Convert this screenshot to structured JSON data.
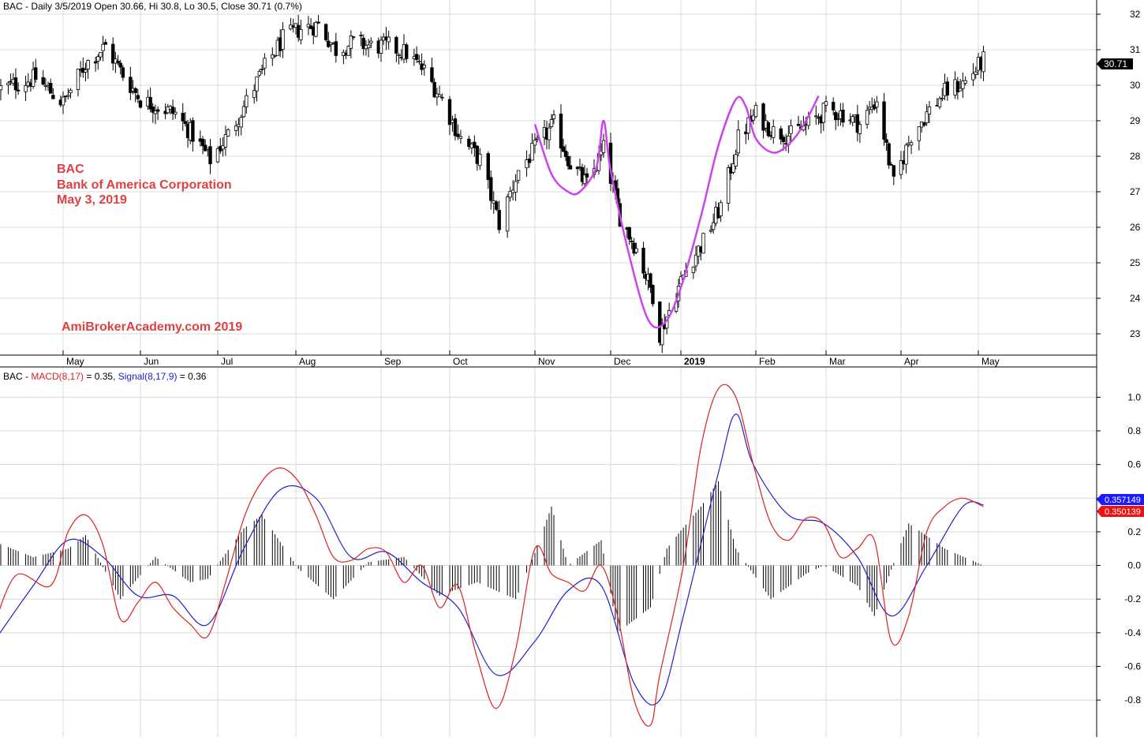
{
  "price_panel": {
    "header_text": "BAC - Daily 3/5/2019 Open 30.66, Hi 30.8, Lo 30.5, Close 30.71 (0.7%)",
    "annotation_lines": [
      "BAC",
      "Bank of America Corporation",
      "May 3, 2019"
    ],
    "watermark": "AmiBrokerAcademy.com  2019",
    "last_price_label": "30.71"
  },
  "macd_panel": {
    "header_prefix": "BAC - ",
    "macd_label": "MACD(8,17)",
    "macd_value_text": " = 0.35, ",
    "signal_label": "Signal(8,17,9)",
    "signal_value_text": " = 0.36",
    "signal_tag": "0.357149",
    "macd_tag": "0.350139"
  },
  "colors": {
    "up_candle": "#ffffff",
    "down_candle": "#000000",
    "pattern_curve": "#cc44ee",
    "annotation_text": "#e04040",
    "macd_line": "#dd2020",
    "signal_line": "#2020cc",
    "grid": "#d8d8d8",
    "last_price_tag": "#000000",
    "signal_tag": "#1a1aff",
    "macd_tag": "#ee1111"
  },
  "chart_data": [
    {
      "type": "candlestick",
      "x_axis": {
        "tick_labels": [
          "May",
          "Jun",
          "Jul",
          "Aug",
          "Sep",
          "Oct",
          "Nov",
          "Dec",
          "2019",
          "Feb",
          "Mar",
          "Apr",
          "May"
        ],
        "tick_dates": [
          "2018-05-01",
          "2018-06-01",
          "2018-07-02",
          "2018-08-01",
          "2018-09-04",
          "2018-10-01",
          "2018-11-01",
          "2018-12-03",
          "2019-01-02",
          "2019-02-01",
          "2019-03-01",
          "2019-04-01",
          "2019-05-01"
        ]
      },
      "y_axis": {
        "range": [
          22.4,
          32.4
        ],
        "ticks": [
          23,
          24,
          25,
          26,
          27,
          28,
          29,
          30,
          31,
          32
        ]
      },
      "series": [
        {
          "kind": "close_path_knots",
          "dates": [
            "2018-04-06",
            "2018-04-20",
            "2018-05-01",
            "2018-05-10",
            "2018-05-18",
            "2018-05-25",
            "2018-06-01",
            "2018-06-08",
            "2018-06-15",
            "2018-06-22",
            "2018-06-29",
            "2018-07-06",
            "2018-07-12",
            "2018-07-20",
            "2018-07-27",
            "2018-08-03",
            "2018-08-10",
            "2018-08-17",
            "2018-08-24",
            "2018-08-31",
            "2018-09-07",
            "2018-09-14",
            "2018-09-21",
            "2018-09-28",
            "2018-10-05",
            "2018-10-12",
            "2018-10-19",
            "2018-10-26",
            "2018-11-02",
            "2018-11-09",
            "2018-11-16",
            "2018-11-23",
            "2018-11-30",
            "2018-12-07",
            "2018-12-14",
            "2018-12-21",
            "2018-12-24",
            "2019-01-04",
            "2019-01-11",
            "2019-01-18",
            "2019-01-25",
            "2019-02-01",
            "2019-02-08",
            "2019-02-15",
            "2019-02-22",
            "2019-03-01",
            "2019-03-08",
            "2019-03-15",
            "2019-03-22",
            "2019-03-29",
            "2019-04-05",
            "2019-04-12",
            "2019-04-18",
            "2019-04-26",
            "2019-05-03"
          ],
          "values": [
            29.9,
            30.2,
            29.5,
            30.6,
            31.1,
            30.3,
            29.6,
            29.4,
            29.2,
            28.6,
            27.9,
            28.6,
            29.4,
            30.5,
            31.3,
            31.6,
            31.7,
            31.0,
            31.2,
            31.1,
            31.1,
            30.9,
            30.4,
            29.6,
            28.5,
            27.9,
            26.1,
            27.6,
            28.3,
            28.9,
            27.8,
            27.2,
            28.2,
            26.3,
            25.4,
            24.1,
            23.0,
            24.8,
            25.6,
            26.6,
            28.5,
            29.2,
            28.7,
            28.6,
            28.9,
            29.3,
            29.2,
            28.9,
            29.6,
            27.2,
            28.6,
            29.3,
            29.8,
            30.1,
            30.71
          ]
        },
        {
          "name": "",
          "kind": "pattern_curve",
          "dates": [
            "2018-11-01",
            "2018-11-08",
            "2018-11-15",
            "2018-11-20",
            "2018-11-27",
            "2018-11-30",
            "2018-12-03",
            "2018-12-11",
            "2018-12-19",
            "2018-12-26",
            "2019-01-02",
            "2019-01-10",
            "2019-01-17",
            "2019-01-24",
            "2019-01-28",
            "2019-02-01",
            "2019-02-08",
            "2019-02-15",
            "2019-02-21",
            "2019-02-26"
          ],
          "values": [
            28.9,
            27.5,
            27.0,
            27.0,
            27.7,
            29.0,
            27.6,
            25.2,
            23.4,
            23.3,
            24.3,
            26.3,
            28.3,
            29.6,
            29.4,
            28.5,
            28.1,
            28.4,
            29.0,
            29.7
          ]
        }
      ]
    },
    {
      "type": "line",
      "y_axis": {
        "range": [
          -1.02,
          1.18
        ],
        "ticks": [
          -0.8,
          -0.6,
          -0.4,
          -0.2,
          0.0,
          0.2,
          0.4,
          0.6,
          0.8,
          1.0
        ],
        "tick_labels": [
          "-0.8",
          "-0.6",
          "-0.4",
          "-0.2",
          "0.0",
          "0.2",
          "0.4",
          "0.6",
          "0.8",
          "1.0"
        ]
      },
      "series": [
        {
          "name": "MACD(8,17)",
          "dates": [
            "2018-04-02",
            "2018-04-12",
            "2018-04-26",
            "2018-05-03",
            "2018-05-10",
            "2018-05-17",
            "2018-05-24",
            "2018-05-31",
            "2018-06-07",
            "2018-06-14",
            "2018-06-21",
            "2018-06-28",
            "2018-07-05",
            "2018-07-12",
            "2018-07-19",
            "2018-07-26",
            "2018-08-02",
            "2018-08-09",
            "2018-08-16",
            "2018-08-23",
            "2018-08-30",
            "2018-09-06",
            "2018-09-13",
            "2018-09-20",
            "2018-09-27",
            "2018-10-04",
            "2018-10-11",
            "2018-10-18",
            "2018-10-25",
            "2018-11-01",
            "2018-11-08",
            "2018-11-15",
            "2018-11-22",
            "2018-11-29",
            "2018-12-06",
            "2018-12-13",
            "2018-12-20",
            "2018-12-24",
            "2019-01-03",
            "2019-01-10",
            "2019-01-17",
            "2019-01-24",
            "2019-01-31",
            "2019-02-07",
            "2019-02-14",
            "2019-02-21",
            "2019-02-28",
            "2019-03-07",
            "2019-03-14",
            "2019-03-21",
            "2019-03-28",
            "2019-04-04",
            "2019-04-11",
            "2019-04-18",
            "2019-04-25",
            "2019-05-03"
          ],
          "values": [
            -0.42,
            -0.06,
            -0.12,
            0.2,
            0.3,
            0.12,
            -0.32,
            -0.22,
            -0.1,
            -0.25,
            -0.35,
            -0.42,
            -0.1,
            0.28,
            0.5,
            0.58,
            0.5,
            0.3,
            0.05,
            0.03,
            0.1,
            0.08,
            -0.1,
            0.0,
            -0.25,
            -0.12,
            -0.55,
            -0.85,
            -0.5,
            0.1,
            -0.05,
            -0.1,
            -0.15,
            0.0,
            -0.3,
            -0.8,
            -0.95,
            -0.65,
            0.0,
            0.7,
            1.05,
            1.0,
            0.6,
            0.25,
            0.15,
            0.28,
            0.25,
            0.05,
            0.1,
            0.15,
            -0.45,
            -0.3,
            0.2,
            0.35,
            0.4,
            0.35
          ]
        },
        {
          "name": "Signal(8,17,9)",
          "dates": [
            "2018-04-02",
            "2018-04-19",
            "2018-05-03",
            "2018-05-17",
            "2018-05-31",
            "2018-06-14",
            "2018-06-28",
            "2018-07-12",
            "2018-07-26",
            "2018-08-09",
            "2018-08-23",
            "2018-09-06",
            "2018-09-20",
            "2018-10-04",
            "2018-10-18",
            "2018-11-01",
            "2018-11-15",
            "2018-11-29",
            "2018-12-13",
            "2018-12-24",
            "2019-01-03",
            "2019-01-17",
            "2019-01-24",
            "2019-01-31",
            "2019-02-14",
            "2019-02-28",
            "2019-03-14",
            "2019-03-28",
            "2019-04-11",
            "2019-04-25",
            "2019-05-03"
          ],
          "values": [
            -0.48,
            -0.12,
            0.15,
            0.05,
            -0.18,
            -0.18,
            -0.35,
            0.1,
            0.45,
            0.4,
            0.05,
            0.08,
            -0.1,
            -0.25,
            -0.65,
            -0.45,
            -0.15,
            -0.12,
            -0.7,
            -0.8,
            -0.3,
            0.55,
            0.9,
            0.6,
            0.3,
            0.25,
            0.05,
            -0.3,
            0.0,
            0.35,
            0.36
          ]
        },
        {
          "name": "",
          "kind": "histogram_knots",
          "dates": [
            "2018-04-02",
            "2018-04-19",
            "2018-05-03",
            "2018-05-10",
            "2018-05-24",
            "2018-06-07",
            "2018-06-21",
            "2018-06-28",
            "2018-07-12",
            "2018-07-19",
            "2018-08-02",
            "2018-08-16",
            "2018-08-30",
            "2018-09-13",
            "2018-09-27",
            "2018-10-11",
            "2018-10-25",
            "2018-11-08",
            "2018-11-15",
            "2018-11-29",
            "2018-12-06",
            "2018-12-20",
            "2018-12-27",
            "2019-01-10",
            "2019-01-17",
            "2019-01-24",
            "2019-02-07",
            "2019-02-21",
            "2019-02-28",
            "2019-03-14",
            "2019-03-21",
            "2019-04-04",
            "2019-04-18",
            "2019-05-03"
          ],
          "values": [
            0.15,
            0.05,
            0.1,
            0.18,
            -0.2,
            0.05,
            -0.1,
            -0.08,
            0.22,
            0.3,
            -0.02,
            -0.2,
            0.02,
            0.05,
            -0.18,
            -0.1,
            -0.2,
            0.35,
            0.0,
            0.15,
            -0.4,
            -0.25,
            0.1,
            0.35,
            0.5,
            0.1,
            -0.2,
            -0.05,
            0.0,
            -0.12,
            -0.3,
            0.25,
            0.1,
            0.0
          ]
        }
      ]
    }
  ]
}
